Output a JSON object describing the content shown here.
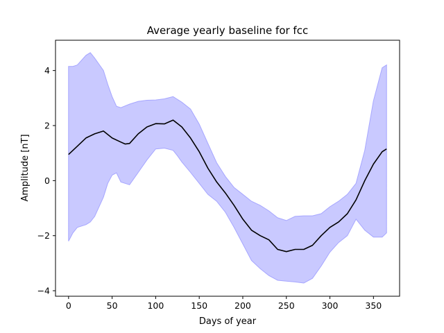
{
  "chart_data": {
    "type": "line",
    "title": "Average yearly baseline for fcc",
    "xlabel": "Days of year",
    "ylabel": "Amplitude [nT]",
    "xlim": [
      -15,
      380
    ],
    "ylim": [
      -4.2,
      5.1
    ],
    "xticks": [
      0,
      50,
      100,
      150,
      200,
      250,
      300,
      350
    ],
    "yticks": [
      -4,
      -2,
      0,
      2,
      4
    ],
    "ytick_labels": [
      "−4",
      "−2",
      "0",
      "2",
      "4"
    ],
    "grid": false,
    "colors": {
      "mean": "#000000",
      "band_fill": "#c9c9ff",
      "band_edge": "#a6a6ff"
    },
    "series": [
      {
        "kind": "mean",
        "x": [
          0,
          10,
          20,
          30,
          40,
          50,
          60,
          65,
          70,
          80,
          90,
          100,
          110,
          120,
          130,
          140,
          150,
          160,
          170,
          180,
          190,
          200,
          210,
          220,
          230,
          240,
          250,
          260,
          270,
          280,
          290,
          300,
          310,
          320,
          330,
          340,
          350,
          360,
          365
        ],
        "y": [
          0.95,
          1.25,
          1.55,
          1.7,
          1.8,
          1.55,
          1.4,
          1.33,
          1.35,
          1.7,
          1.95,
          2.07,
          2.06,
          2.2,
          1.95,
          1.55,
          1.05,
          0.45,
          -0.05,
          -0.45,
          -0.9,
          -1.4,
          -1.8,
          -2.0,
          -2.15,
          -2.5,
          -2.58,
          -2.5,
          -2.5,
          -2.35,
          -2.0,
          -1.7,
          -1.5,
          -1.2,
          -0.7,
          0.0,
          0.6,
          1.05,
          1.15
        ]
      },
      {
        "kind": "band",
        "x": [
          0,
          5,
          10,
          20,
          25,
          30,
          40,
          45,
          50,
          55,
          60,
          70,
          80,
          90,
          100,
          110,
          120,
          125,
          130,
          140,
          150,
          160,
          170,
          180,
          190,
          200,
          210,
          220,
          230,
          240,
          250,
          260,
          270,
          280,
          290,
          300,
          310,
          320,
          330,
          340,
          350,
          360,
          365
        ],
        "upper": [
          4.15,
          4.15,
          4.2,
          4.55,
          4.65,
          4.45,
          4.0,
          3.5,
          3.05,
          2.7,
          2.65,
          2.78,
          2.88,
          2.92,
          2.93,
          2.97,
          3.05,
          2.95,
          2.85,
          2.6,
          2.05,
          1.35,
          0.65,
          0.15,
          -0.25,
          -0.5,
          -0.75,
          -0.9,
          -1.1,
          -1.35,
          -1.45,
          -1.3,
          -1.28,
          -1.28,
          -1.2,
          -0.95,
          -0.75,
          -0.5,
          -0.1,
          1.1,
          2.9,
          4.1,
          4.2
        ],
        "lower": [
          -2.2,
          -1.9,
          -1.7,
          -1.6,
          -1.5,
          -1.3,
          -0.6,
          -0.1,
          0.2,
          0.28,
          -0.05,
          -0.15,
          0.3,
          0.75,
          1.15,
          1.18,
          1.1,
          0.9,
          0.68,
          0.3,
          -0.1,
          -0.5,
          -0.75,
          -1.15,
          -1.7,
          -2.3,
          -2.9,
          -3.2,
          -3.45,
          -3.62,
          -3.65,
          -3.68,
          -3.72,
          -3.55,
          -3.1,
          -2.6,
          -2.25,
          -2.0,
          -1.4,
          -1.8,
          -2.05,
          -2.05,
          -1.9
        ]
      }
    ]
  }
}
